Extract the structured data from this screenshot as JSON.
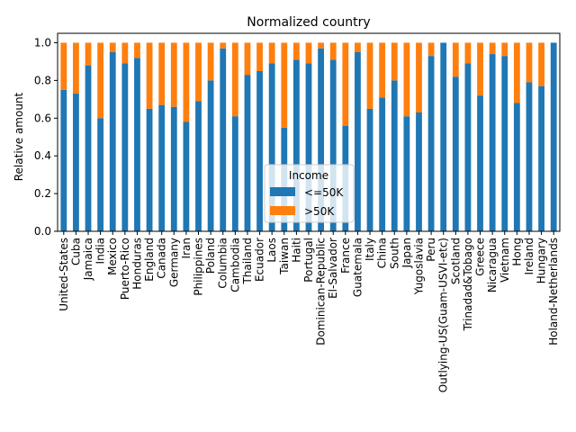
{
  "chart_data": {
    "type": "bar",
    "stacked": true,
    "title": "Normalized country",
    "xlabel": "",
    "ylabel": "Relative amount",
    "ylim": [
      0,
      1.05
    ],
    "yticks": [
      "0.0",
      "0.2",
      "0.4",
      "0.6",
      "0.8",
      "1.0"
    ],
    "categories": [
      "United-States",
      "Cuba",
      "Jamaica",
      "India",
      "Mexico",
      "Puerto-Rico",
      "Honduras",
      "England",
      "Canada",
      "Germany",
      "Iran",
      "Philippines",
      "Poland",
      "Columbia",
      "Cambodia",
      "Thailand",
      "Ecuador",
      "Laos",
      "Taiwan",
      "Haiti",
      "Portugal",
      "Dominican-Republic",
      "El-Salvador",
      "France",
      "Guatemala",
      "Italy",
      "China",
      "South",
      "Japan",
      "Yugoslavia",
      "Peru",
      "Outlying-US(Guam-USVI-etc)",
      "Scotland",
      "Trinadad&Tobago",
      "Greece",
      "Nicaragua",
      "Vietnam",
      "Hong",
      "Ireland",
      "Hungary",
      "Holand-Netherlands"
    ],
    "series": [
      {
        "name": "<=50K",
        "color": "#1f77b4",
        "values": [
          0.75,
          0.73,
          0.88,
          0.6,
          0.95,
          0.89,
          0.92,
          0.65,
          0.67,
          0.66,
          0.58,
          0.69,
          0.8,
          0.97,
          0.61,
          0.83,
          0.85,
          0.89,
          0.55,
          0.91,
          0.89,
          0.97,
          0.91,
          0.56,
          0.95,
          0.65,
          0.71,
          0.8,
          0.61,
          0.63,
          0.93,
          1.0,
          0.82,
          0.89,
          0.72,
          0.94,
          0.93,
          0.68,
          0.79,
          0.77,
          1.0
        ]
      },
      {
        "name": ">50K",
        "color": "#ff7f0e",
        "values": [
          0.25,
          0.27,
          0.12,
          0.4,
          0.05,
          0.11,
          0.08,
          0.35,
          0.33,
          0.34,
          0.42,
          0.31,
          0.2,
          0.03,
          0.39,
          0.17,
          0.15,
          0.11,
          0.45,
          0.09,
          0.11,
          0.03,
          0.09,
          0.44,
          0.05,
          0.35,
          0.29,
          0.2,
          0.39,
          0.37,
          0.07,
          0.0,
          0.18,
          0.11,
          0.28,
          0.06,
          0.07,
          0.32,
          0.21,
          0.23,
          0.0
        ]
      }
    ],
    "legend": {
      "title": "Income",
      "placement": "lower-center"
    },
    "grid": false
  }
}
